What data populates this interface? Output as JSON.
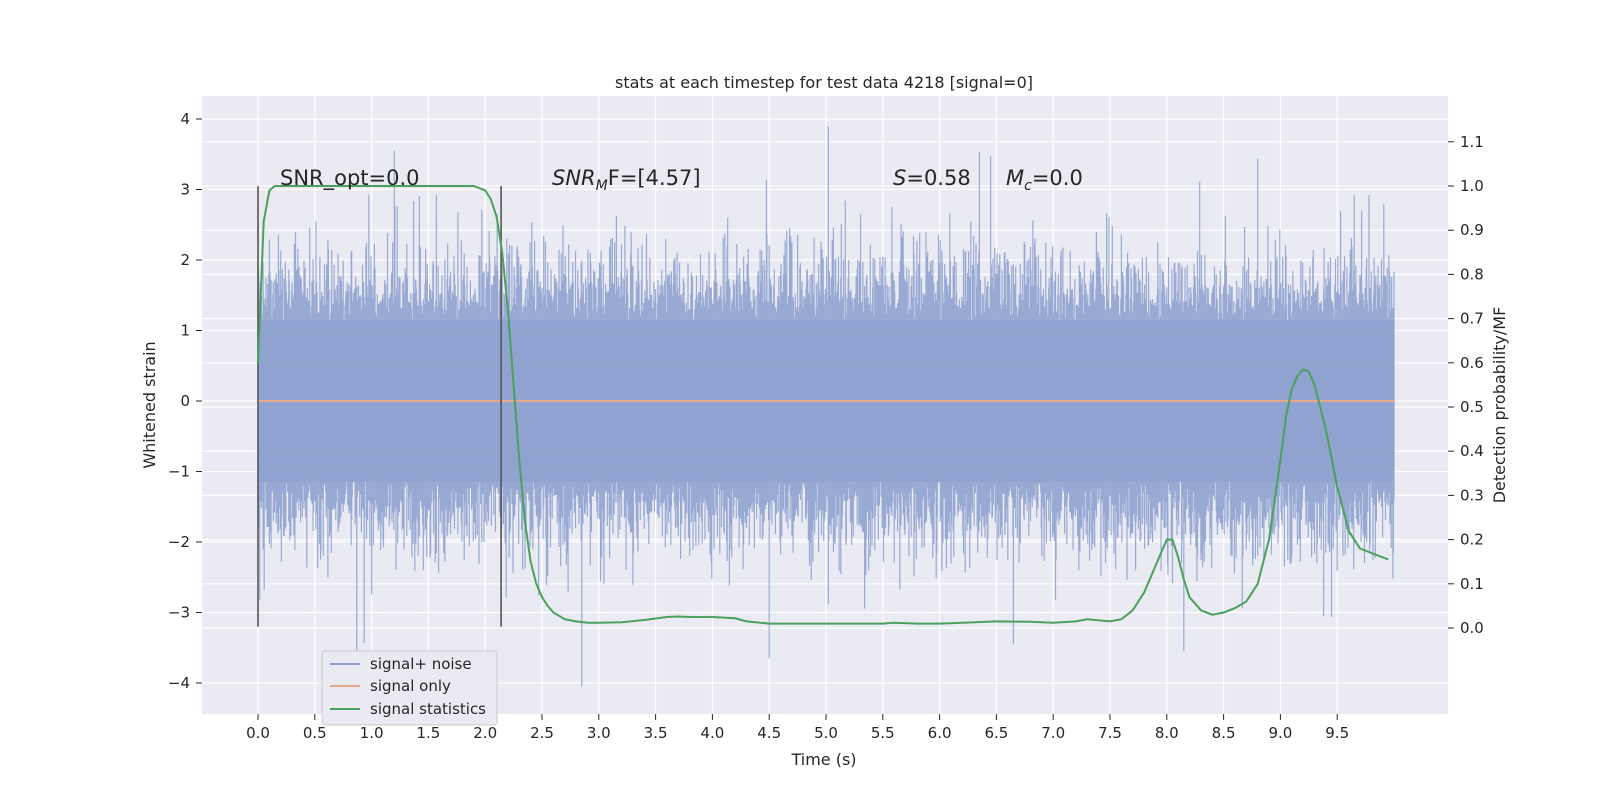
{
  "chart_data": {
    "type": "line",
    "title": "stats at each timestep for test data 4218 [signal=0]",
    "xlabel": "Time (s)",
    "ylabel_left": "Whitened strain",
    "ylabel_right": "Detection probability/MF",
    "xlim": [
      -0.48,
      10.5
    ],
    "ylim_left": [
      -4.45,
      4.3
    ],
    "ylim_right": [
      -0.2,
      1.2
    ],
    "x_ticks": [
      "0.0",
      "0.5",
      "1.0",
      "1.5",
      "2.0",
      "2.5",
      "3.0",
      "3.5",
      "4.0",
      "4.5",
      "5.0",
      "5.5",
      "6.0",
      "6.5",
      "7.0",
      "7.5",
      "8.0",
      "8.5",
      "9.0",
      "9.5"
    ],
    "y_left_ticks": [
      "−4",
      "−3",
      "−2",
      "−1",
      "0",
      "1",
      "2",
      "3",
      "4"
    ],
    "y_right_ticks": [
      "0.0",
      "0.1",
      "0.2",
      "0.3",
      "0.4",
      "0.5",
      "0.6",
      "0.7",
      "0.8",
      "0.9",
      "1.0",
      "1.1"
    ],
    "grid": true,
    "legend_position": "lower-left",
    "series": [
      {
        "name": "signal+ noise",
        "color": "#8fa3cf",
        "axis": "left",
        "description_values": "noise band between approx -2.0 and 2.0 with spikes up to 3.9 and down to -4.05, x from 0 to 10"
      },
      {
        "name": "signal only",
        "color": "#e8a98a",
        "axis": "left",
        "x": [
          0,
          10
        ],
        "y": [
          0,
          0
        ]
      },
      {
        "name": "signal statistics",
        "color": "#4aa05c",
        "axis": "right",
        "x": [
          0.0,
          0.05,
          0.1,
          0.15,
          0.2,
          0.3,
          0.5,
          1.0,
          1.5,
          1.8,
          1.9,
          2.0,
          2.05,
          2.1,
          2.15,
          2.2,
          2.25,
          2.3,
          2.35,
          2.4,
          2.45,
          2.5,
          2.55,
          2.6,
          2.7,
          2.8,
          2.9,
          3.0,
          3.2,
          3.4,
          3.6,
          3.7,
          3.8,
          4.0,
          4.2,
          4.3,
          4.5,
          4.7,
          5.0,
          5.3,
          5.5,
          5.6,
          5.8,
          6.0,
          6.2,
          6.5,
          6.8,
          7.0,
          7.2,
          7.3,
          7.5,
          7.6,
          7.7,
          7.8,
          7.9,
          8.0,
          8.05,
          8.1,
          8.15,
          8.2,
          8.3,
          8.4,
          8.5,
          8.6,
          8.7,
          8.8,
          8.9,
          9.0,
          9.05,
          9.1,
          9.15,
          9.2,
          9.25,
          9.3,
          9.4,
          9.5,
          9.6,
          9.7,
          9.8,
          9.9,
          9.95
        ],
        "y": [
          0.6,
          0.92,
          0.99,
          1.0,
          1.0,
          1.0,
          1.0,
          1.0,
          1.0,
          1.0,
          1.0,
          0.99,
          0.97,
          0.93,
          0.85,
          0.72,
          0.55,
          0.38,
          0.24,
          0.15,
          0.1,
          0.07,
          0.05,
          0.035,
          0.02,
          0.015,
          0.012,
          0.012,
          0.013,
          0.018,
          0.025,
          0.026,
          0.025,
          0.025,
          0.022,
          0.015,
          0.01,
          0.01,
          0.01,
          0.01,
          0.01,
          0.012,
          0.01,
          0.01,
          0.012,
          0.015,
          0.014,
          0.012,
          0.015,
          0.02,
          0.015,
          0.02,
          0.04,
          0.08,
          0.14,
          0.2,
          0.2,
          0.16,
          0.11,
          0.07,
          0.04,
          0.03,
          0.035,
          0.045,
          0.06,
          0.1,
          0.2,
          0.38,
          0.48,
          0.54,
          0.57,
          0.585,
          0.58,
          0.55,
          0.45,
          0.32,
          0.22,
          0.18,
          0.17,
          0.16,
          0.155
        ]
      }
    ],
    "vertical_lines": [
      0.0,
      2.14
    ],
    "annotations": {
      "snr_opt": "SNR_opt=0.0",
      "snr_mf_prefix": "SNR",
      "snr_mf_sub": "M",
      "snr_mf_suffix": "F=[4.57]",
      "s_label": "S",
      "s_value": "=0.58",
      "mc_label": "M",
      "mc_sub": "c",
      "mc_value": "=0.0"
    }
  }
}
